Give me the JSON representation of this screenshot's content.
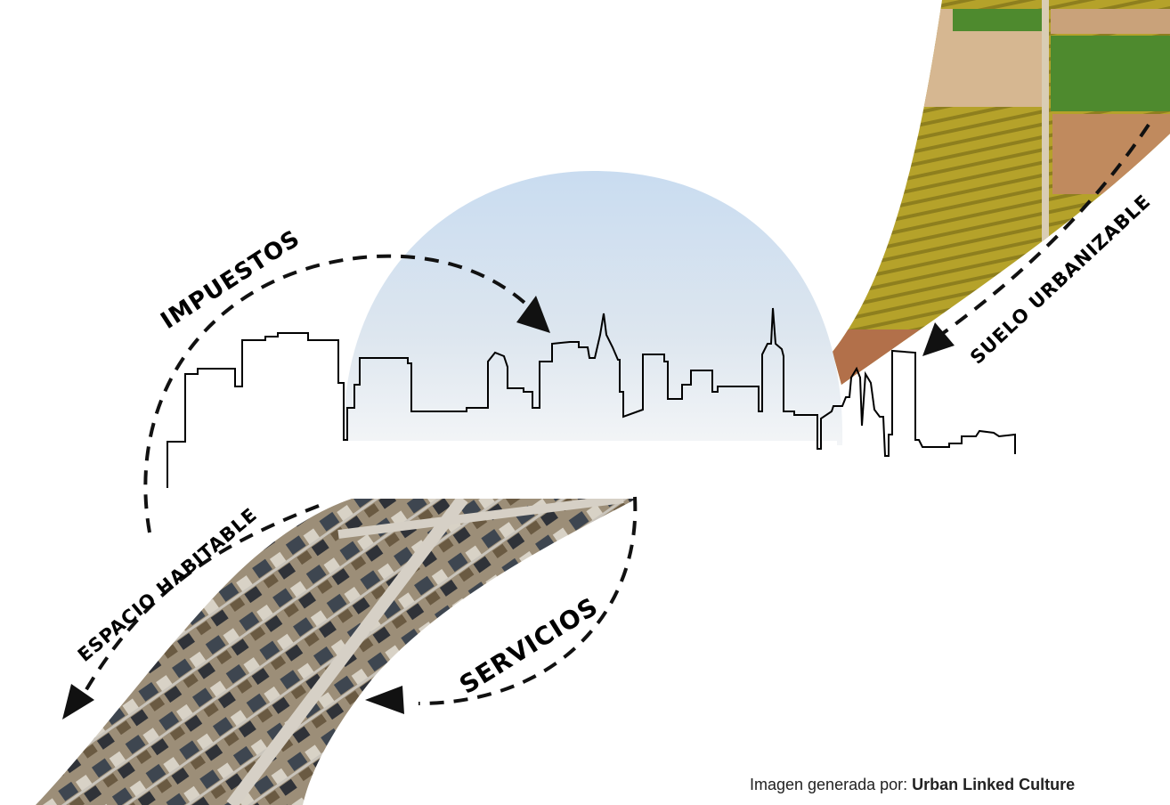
{
  "labels": {
    "impuestos": "IMPUESTOS",
    "suelo_urbanizable": "SUELO URBANIZABLE",
    "espacio_habitable": "ESPACIO HABITABLE",
    "servicios": "SERVICIOS"
  },
  "credit": {
    "prefix": "Imagen generada por: ",
    "author": "Urban Linked Culture"
  },
  "colors": {
    "sky_top": "#cfdff0",
    "sky_bottom": "#eef1f4",
    "field_yellow": "#b9a62c",
    "field_green": "#4e8a2e",
    "field_brown": "#c08a5e",
    "houses": "#8b7a66"
  }
}
